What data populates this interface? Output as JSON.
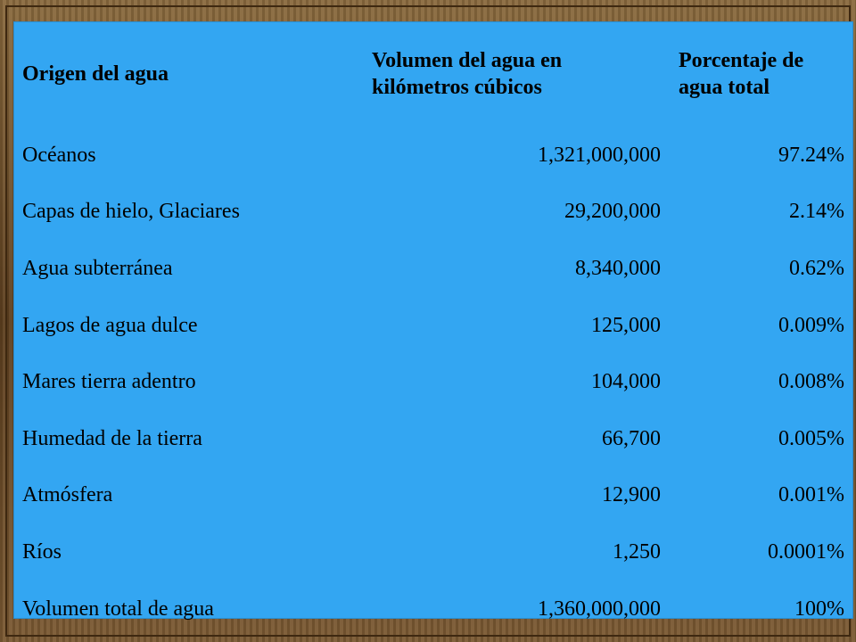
{
  "table": {
    "headers": [
      "Origen del agua",
      "Volumen del agua en kilómetros cúbicos",
      "Porcentaje de agua total"
    ],
    "rows": [
      [
        "Océanos",
        "1,321,000,000",
        "97.24%"
      ],
      [
        "Capas de hielo, Glaciares",
        "29,200,000",
        "2.14%"
      ],
      [
        "Agua subterránea",
        "8,340,000",
        "0.62%"
      ],
      [
        "Lagos de agua dulce",
        "125,000",
        "0.009%"
      ],
      [
        "Mares tierra adentro",
        "104,000",
        "0.008%"
      ],
      [
        "Humedad de la tierra",
        "66,700",
        "0.005%"
      ],
      [
        "Atmósfera",
        "12,900",
        "0.001%"
      ],
      [
        "Ríos",
        "1,250",
        "0.0001%"
      ],
      [
        "Volumen total de agua",
        "1,360,000,000",
        "100%"
      ]
    ]
  },
  "colors": {
    "panel_background": "#33a6f2",
    "frame": "#6b4a28",
    "text": "#000000"
  }
}
